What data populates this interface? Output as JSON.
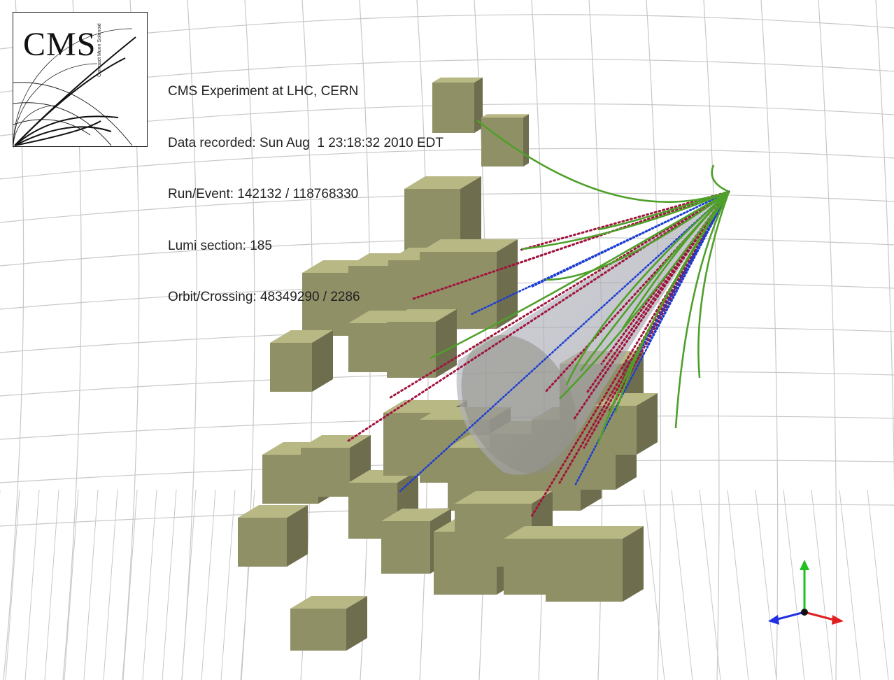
{
  "logo": {
    "text": "CMS",
    "subtitle": "Compact Muon Solenoid"
  },
  "event_info": {
    "experiment": "CMS Experiment at LHC, CERN",
    "data_recorded": "Data recorded: Sun Aug  1 23:18:32 2010 EDT",
    "run_event": "Run/Event: 142132 / 118768330",
    "lumi_section": "Lumi section: 185",
    "orbit_crossing": "Orbit/Crossing: 48349290 / 2286"
  },
  "colors": {
    "calorimeter_tower": "#b8b884",
    "track": "#4fa02a",
    "red_jet_line": "#a0143c",
    "blue_jet_line": "#1a3cd2",
    "jet_cone": "#9a9aa8",
    "grid": "#c8c8c8",
    "axis_x": "#e02020",
    "axis_y": "#20c020",
    "axis_z": "#2030e0"
  }
}
